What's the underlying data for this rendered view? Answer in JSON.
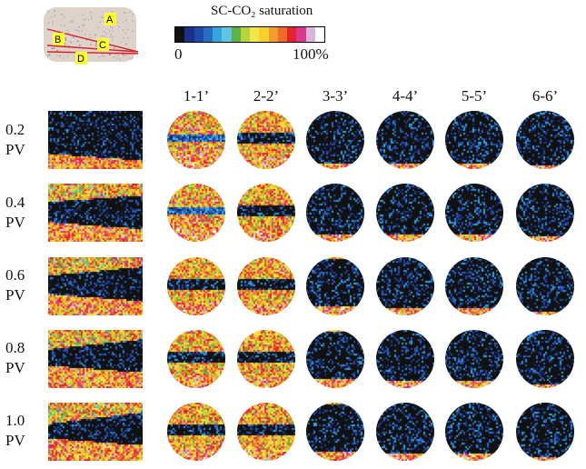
{
  "core_schematic": {
    "labels": [
      "A",
      "B",
      "C",
      "D"
    ],
    "rock_color": "#ddd3c8",
    "arrow_color": "#d8202a",
    "label_bg": "#ffff33"
  },
  "legend": {
    "title": "SC-CO₂ saturation",
    "min_label": "0",
    "max_label": "100%",
    "colors": [
      "#111111",
      "#1b2f8c",
      "#1f4aa8",
      "#2a6ec4",
      "#35a3df",
      "#5ec6e2",
      "#62b345",
      "#b9d43a",
      "#f2e64a",
      "#f7d12a",
      "#f59a2c",
      "#ee6a27",
      "#e5232b",
      "#d73a8e",
      "#d8b6dc",
      "#ffffff"
    ]
  },
  "columns": [
    "1-1’",
    "2-2’",
    "3-3’",
    "4-4’",
    "5-5’",
    "6-6’"
  ],
  "rows": [
    {
      "label_value": "0.2",
      "label_unit": "PV",
      "rect": {
        "top_band": 0.15,
        "bottom_start": 0.72,
        "plume": 0.2
      },
      "circles": [
        0.3,
        0.45,
        0.8,
        0.82,
        0.83,
        0.9
      ]
    },
    {
      "label_value": "0.4",
      "label_unit": "PV",
      "rect": {
        "top_band": 0.3,
        "bottom_start": 0.65,
        "plume": 0.45
      },
      "circles": [
        0.35,
        0.55,
        0.7,
        0.72,
        0.75,
        0.85
      ]
    },
    {
      "label_value": "0.6",
      "label_unit": "PV",
      "rect": {
        "top_band": 0.3,
        "bottom_start": 0.62,
        "plume": 0.6
      },
      "circles": [
        0.45,
        0.55,
        0.65,
        0.7,
        0.76,
        0.88
      ]
    },
    {
      "label_value": "0.8",
      "label_unit": "PV",
      "rect": {
        "top_band": 0.32,
        "bottom_start": 0.6,
        "plume": 0.7
      },
      "circles": [
        0.48,
        0.57,
        0.68,
        0.72,
        0.76,
        0.9
      ]
    },
    {
      "label_value": "1.0",
      "label_unit": "PV",
      "rect": {
        "top_band": 0.35,
        "bottom_start": 0.6,
        "plume": 0.8
      },
      "circles": [
        0.5,
        0.58,
        0.66,
        0.72,
        0.75,
        0.9
      ]
    }
  ]
}
